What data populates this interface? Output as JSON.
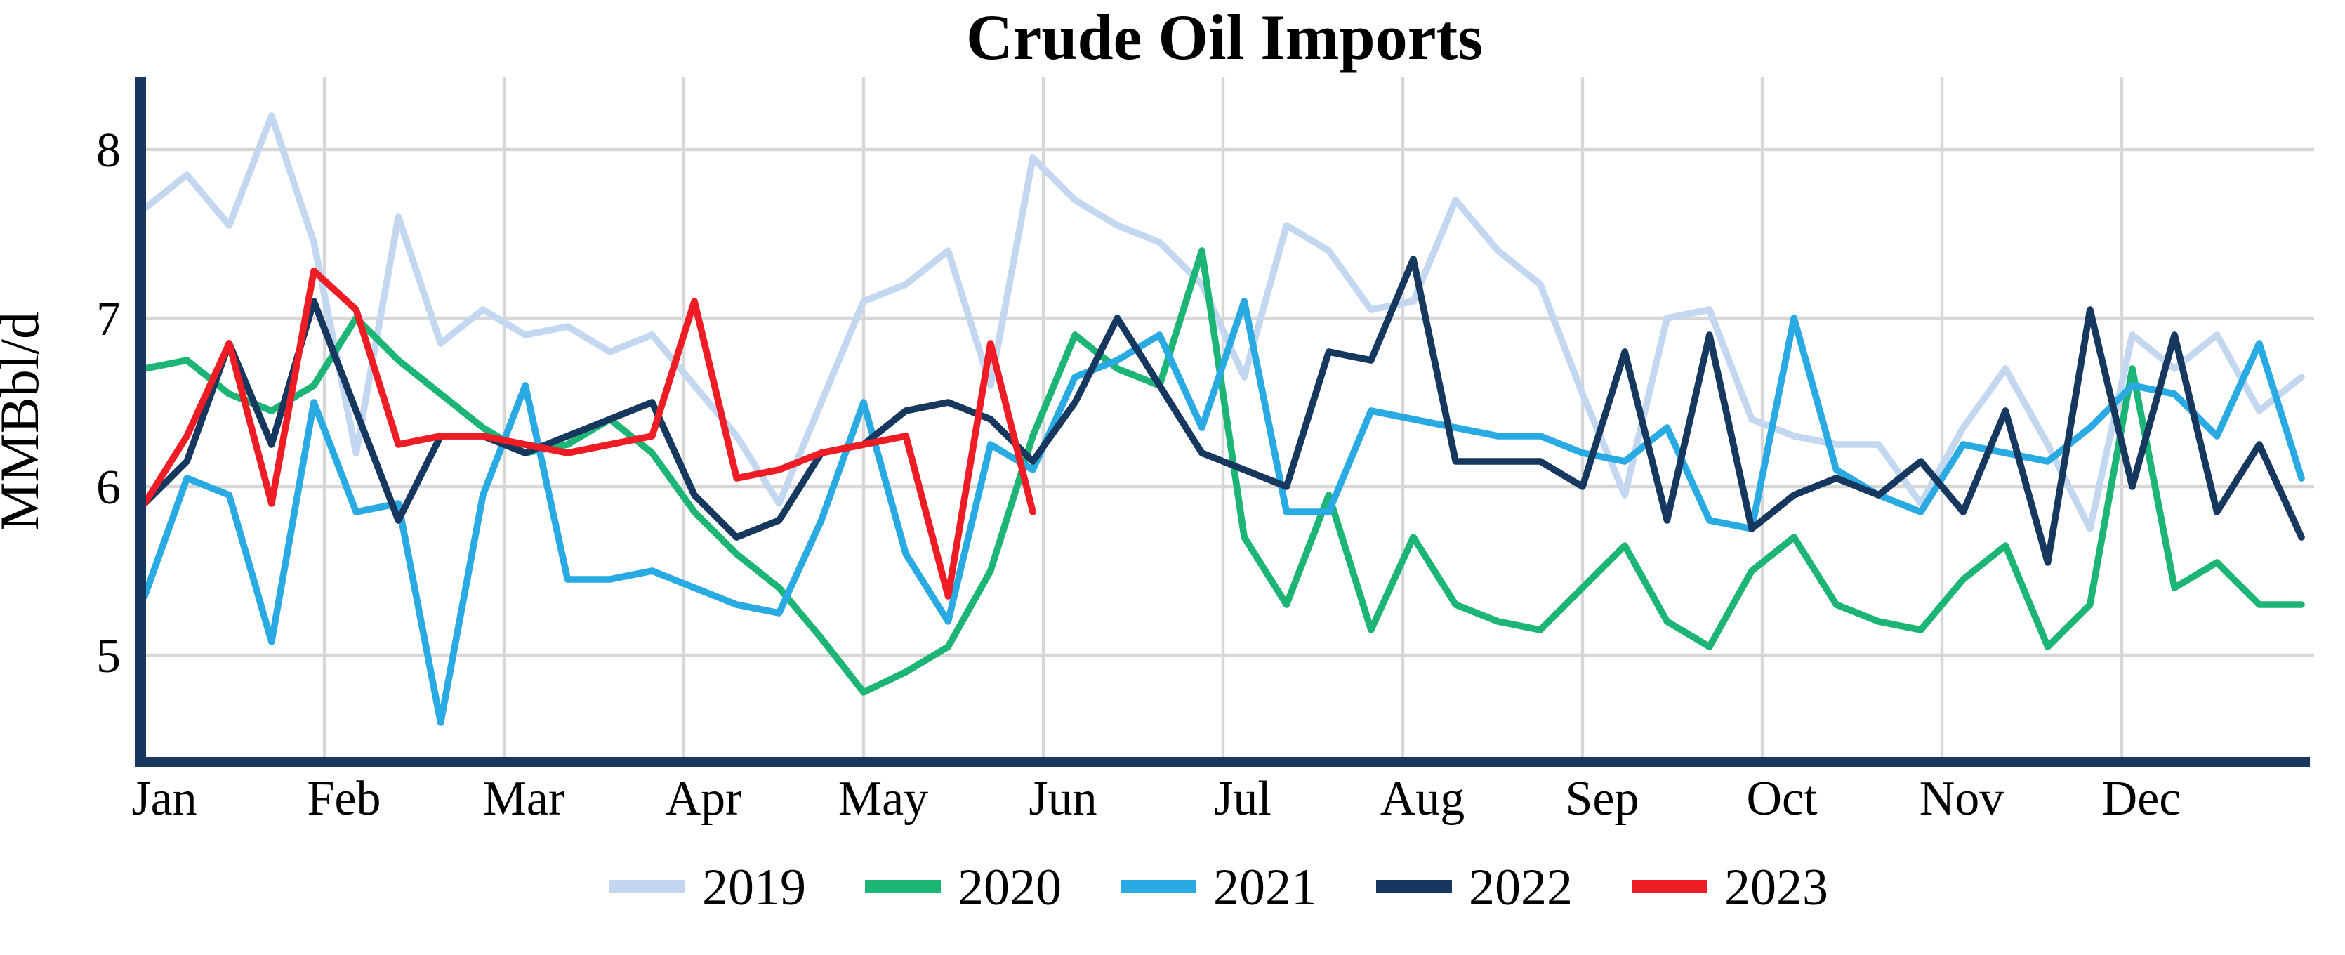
{
  "chart_data": {
    "type": "line",
    "title": "Crude Oil Imports",
    "ylabel": "MMBbl/d",
    "xlabel": "",
    "x_axis": {
      "months": [
        "Jan",
        "Feb",
        "Mar",
        "Apr",
        "May",
        "Jun",
        "Jul",
        "Aug",
        "Sep",
        "Oct",
        "Nov",
        "Dec"
      ],
      "points_per_year": 52,
      "unit": "weekly"
    },
    "y_axis": {
      "ticks": [
        8,
        7,
        6,
        5
      ],
      "range_top": 8.4,
      "range_bottom": 4.4
    },
    "grid": "on",
    "legend_position": "bottom",
    "colors": {
      "axis": "#16385e",
      "gridline": "#d7d7d7",
      "background": "#ffffff"
    },
    "series": [
      {
        "name": "2019",
        "color": "#c3d8f0",
        "values": [
          7.65,
          7.85,
          7.55,
          8.2,
          7.45,
          6.2,
          7.6,
          6.85,
          7.05,
          6.9,
          6.95,
          6.8,
          6.9,
          6.6,
          6.3,
          5.9,
          6.5,
          7.1,
          7.2,
          7.4,
          6.6,
          7.95,
          7.7,
          7.55,
          7.45,
          7.2,
          6.65,
          7.55,
          7.4,
          7.05,
          7.1,
          7.7,
          7.4,
          7.2,
          6.55,
          5.95,
          7.0,
          7.05,
          6.4,
          6.3,
          6.25,
          6.25,
          5.9,
          6.35,
          6.7,
          6.25,
          5.75,
          6.9,
          6.7,
          6.9,
          6.45,
          6.65
        ]
      },
      {
        "name": "2020",
        "color": "#1cb576",
        "values": [
          6.7,
          6.75,
          6.55,
          6.45,
          6.6,
          7.0,
          6.75,
          6.55,
          6.35,
          6.2,
          6.25,
          6.4,
          6.2,
          5.85,
          5.6,
          5.4,
          5.1,
          4.78,
          4.9,
          5.05,
          5.5,
          6.3,
          6.9,
          6.7,
          6.6,
          7.4,
          5.7,
          5.3,
          5.95,
          5.15,
          5.7,
          5.3,
          5.2,
          5.15,
          5.4,
          5.65,
          5.2,
          5.05,
          5.5,
          5.7,
          5.3,
          5.2,
          5.15,
          5.45,
          5.65,
          5.05,
          5.3,
          6.7,
          5.4,
          5.55,
          5.3,
          5.3
        ]
      },
      {
        "name": "2021",
        "color": "#29aae3",
        "values": [
          5.35,
          6.05,
          5.95,
          5.08,
          6.5,
          5.85,
          5.9,
          4.6,
          5.95,
          6.6,
          5.45,
          5.45,
          5.5,
          5.4,
          5.3,
          5.25,
          5.8,
          6.5,
          5.6,
          5.2,
          6.25,
          6.1,
          6.65,
          6.75,
          6.9,
          6.35,
          7.1,
          5.85,
          5.85,
          6.45,
          6.4,
          6.35,
          6.3,
          6.3,
          6.2,
          6.15,
          6.35,
          5.8,
          5.75,
          7.0,
          6.1,
          5.95,
          5.85,
          6.25,
          6.2,
          6.15,
          6.35,
          6.6,
          6.55,
          6.3,
          6.85,
          6.05
        ]
      },
      {
        "name": "2022",
        "color": "#16385e",
        "values": [
          5.9,
          6.15,
          6.85,
          6.25,
          7.1,
          6.45,
          5.8,
          6.3,
          6.3,
          6.2,
          6.3,
          6.4,
          6.5,
          5.95,
          5.7,
          5.8,
          6.2,
          6.25,
          6.45,
          6.5,
          6.4,
          6.15,
          6.5,
          7.0,
          6.6,
          6.2,
          6.1,
          6.0,
          6.8,
          6.75,
          7.35,
          6.15,
          6.15,
          6.15,
          6.0,
          6.8,
          5.8,
          6.9,
          5.75,
          5.95,
          6.05,
          5.95,
          6.15,
          5.85,
          6.45,
          5.55,
          7.05,
          6.0,
          6.9,
          5.85,
          6.25,
          5.7
        ]
      },
      {
        "name": "2023",
        "color": "#ee1c25",
        "values": [
          5.9,
          6.3,
          6.85,
          5.9,
          7.28,
          7.05,
          6.25,
          6.3,
          6.3,
          6.25,
          6.2,
          6.25,
          6.3,
          7.1,
          6.05,
          6.1,
          6.2,
          6.25,
          6.3,
          5.35,
          6.85,
          5.85
        ]
      }
    ]
  }
}
